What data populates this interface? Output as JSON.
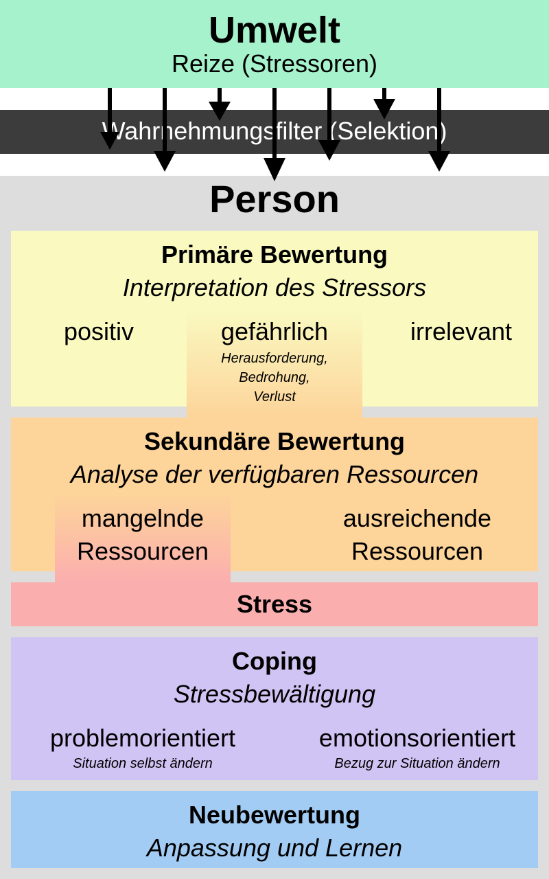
{
  "umwelt": {
    "title": "Umwelt",
    "subtitle": "Reize (Stressoren)"
  },
  "filter": {
    "label": "Wahrnehmungsfilter (Selektion)"
  },
  "person": {
    "title": "Person"
  },
  "primary": {
    "title": "Primäre Bewertung",
    "subtitle": "Interpretation des Stressors",
    "options": {
      "left": "positiv",
      "center": "gefährlich",
      "center_details": [
        "Herausforderung,",
        "Bedrohung,",
        "Verlust"
      ],
      "right": "irrelevant"
    }
  },
  "secondary": {
    "title": "Sekundäre Bewertung",
    "subtitle": "Analyse der verfügbaren Ressourcen",
    "left": [
      "mangelnde",
      "Ressourcen"
    ],
    "right": [
      "ausreichende",
      "Ressourcen"
    ]
  },
  "stress": {
    "label": "Stress"
  },
  "coping": {
    "title": "Coping",
    "subtitle": "Stressbewältigung",
    "left": {
      "label": "problemorientiert",
      "detail": "Situation selbst ändern"
    },
    "right": {
      "label": "emotionsorientiert",
      "detail": "Bezug zur Situation ändern"
    }
  },
  "neubewertung": {
    "title": "Neubewertung",
    "subtitle": "Anpassung und Lernen"
  },
  "colors": {
    "umwelt": "#a6f2cc",
    "filter": "#3c3c3c",
    "person": "#dddddd",
    "primary": "#f9f9c0",
    "secondary": "#fdd49a",
    "stress": "#fbaeae",
    "coping": "#d0c4f4",
    "neubewertung": "#a2ccf4"
  }
}
